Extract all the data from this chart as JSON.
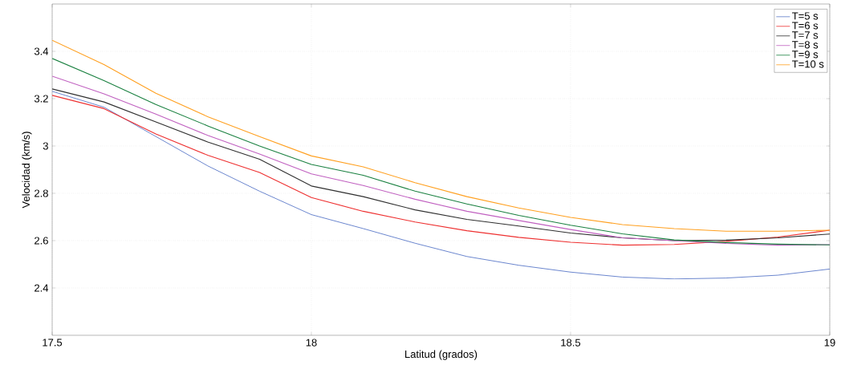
{
  "chart_data": {
    "type": "line",
    "xlabel": "Latitud (grados)",
    "ylabel": "Velocidad (km/s)",
    "x": [
      17.5,
      17.6,
      17.7,
      17.8,
      17.9,
      18.0,
      18.1,
      18.2,
      18.3,
      18.4,
      18.5,
      18.6,
      18.7,
      18.8,
      18.9,
      19.0
    ],
    "xlim": [
      17.5,
      19
    ],
    "ylim": [
      2.2,
      3.6
    ],
    "xticks": [
      17.5,
      18,
      18.5,
      19
    ],
    "yticks": [
      2.4,
      2.6,
      2.8,
      3,
      3.2,
      3.4
    ],
    "grid": true,
    "legend": "top right",
    "line_style": "solid",
    "marker": "none",
    "series": [
      {
        "name": "T=5 s",
        "color": "#5a78c8",
        "values": [
          3.231,
          3.164,
          3.04,
          2.916,
          2.809,
          2.71,
          2.651,
          2.589,
          2.533,
          2.496,
          2.467,
          2.446,
          2.438,
          2.442,
          2.454,
          2.48
        ]
      },
      {
        "name": "T=6 s",
        "color": "#ee3030",
        "values": [
          3.214,
          3.158,
          3.051,
          2.961,
          2.888,
          2.782,
          2.724,
          2.679,
          2.642,
          2.614,
          2.593,
          2.581,
          2.584,
          2.597,
          2.615,
          2.644
        ]
      },
      {
        "name": "T=7 s",
        "color": "#303030",
        "values": [
          3.241,
          3.186,
          3.102,
          3.017,
          2.944,
          2.831,
          2.786,
          2.73,
          2.69,
          2.662,
          2.632,
          2.612,
          2.6,
          2.602,
          2.612,
          2.628
        ]
      },
      {
        "name": "T=8 s",
        "color": "#c060c0",
        "values": [
          3.295,
          3.22,
          3.135,
          3.045,
          2.966,
          2.882,
          2.833,
          2.775,
          2.724,
          2.685,
          2.647,
          2.612,
          2.6,
          2.588,
          2.581,
          2.583
        ]
      },
      {
        "name": "T=9 s",
        "color": "#1a8040",
        "values": [
          3.37,
          3.276,
          3.175,
          3.085,
          3.0,
          2.922,
          2.876,
          2.809,
          2.755,
          2.707,
          2.665,
          2.629,
          2.603,
          2.592,
          2.585,
          2.582
        ]
      },
      {
        "name": "T=10 s",
        "color": "#ffa020",
        "values": [
          3.447,
          3.344,
          3.223,
          3.124,
          3.04,
          2.958,
          2.912,
          2.845,
          2.786,
          2.738,
          2.698,
          2.668,
          2.651,
          2.64,
          2.64,
          2.644
        ]
      }
    ]
  }
}
